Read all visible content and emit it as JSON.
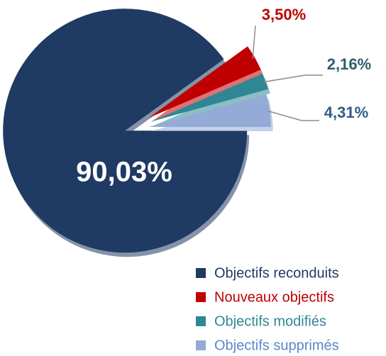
{
  "chart_data": {
    "type": "pie",
    "categories": [
      "Objectifs reconduits",
      "Nouveaux objectifs",
      "Objectifs modifiés",
      "Objectifs supprimés"
    ],
    "values": [
      90.03,
      3.5,
      2.16,
      4.31
    ],
    "value_labels": [
      "90,03%",
      "3,50%",
      "2,16%",
      "4,31%"
    ],
    "colors": [
      "#1f3a63",
      "#c00000",
      "#2f8795",
      "#93abd6"
    ]
  }
}
